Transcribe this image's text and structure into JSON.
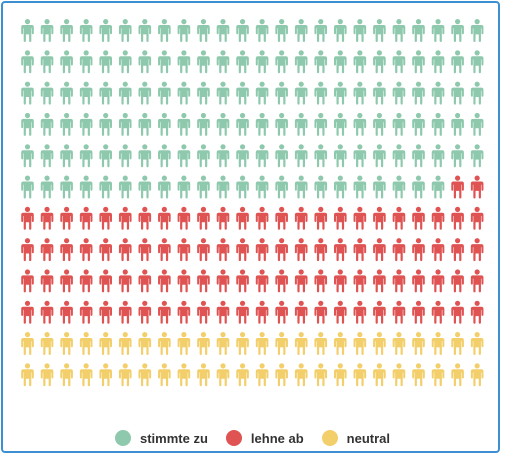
{
  "chart_data": {
    "type": "waffle",
    "title": "",
    "grid": {
      "columns": 24,
      "rows": 12
    },
    "series": [
      {
        "name": "stimmte zu",
        "count": 142,
        "color": "#8ec9ad"
      },
      {
        "name": "lehne ab",
        "count": 98,
        "color": "#df5353"
      },
      {
        "name": "neutral",
        "count": 48,
        "color": "#f2cf6b"
      }
    ],
    "legend": {
      "position": "bottom-center"
    }
  }
}
